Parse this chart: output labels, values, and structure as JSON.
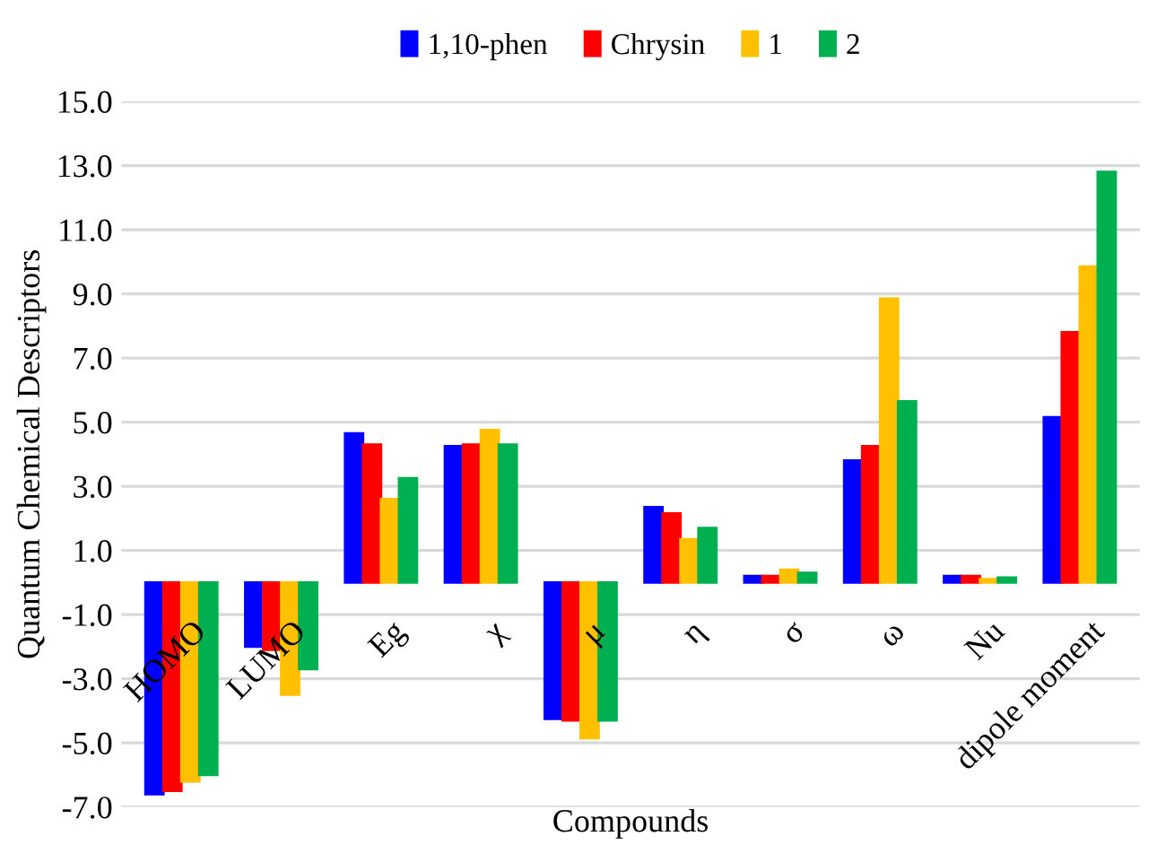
{
  "chart_data": {
    "type": "bar",
    "xlabel": "Compounds",
    "ylabel": "Quantum Chemical Descriptors",
    "categories": [
      "HOMO",
      "LUMO",
      "Eg",
      "χ",
      "μ",
      "η",
      "σ",
      "ω",
      "Nu",
      "dipole moment"
    ],
    "series": [
      {
        "name": "1,10-phen",
        "color": "#0000ff",
        "values": [
          -6.6,
          -2.0,
          4.65,
          4.25,
          -4.25,
          2.35,
          0.2,
          3.8,
          0.2,
          5.15
        ]
      },
      {
        "name": "Chrysin",
        "color": "#ff0000",
        "values": [
          -6.5,
          -2.1,
          4.3,
          4.3,
          -4.3,
          2.15,
          0.2,
          4.25,
          0.2,
          7.8
        ]
      },
      {
        "name": "1",
        "color": "#ffc000",
        "values": [
          -6.2,
          -3.5,
          2.6,
          4.75,
          -4.85,
          1.35,
          0.4,
          8.85,
          0.1,
          9.85
        ]
      },
      {
        "name": "2",
        "color": "#00b050",
        "values": [
          -6.0,
          -2.7,
          3.25,
          4.3,
          -4.3,
          1.7,
          0.3,
          5.65,
          0.15,
          12.8
        ]
      }
    ],
    "ylim": [
      -7,
      15
    ],
    "yticks": [
      {
        "value": -7,
        "label": "-7.0"
      },
      {
        "value": -5,
        "label": "-5.0"
      },
      {
        "value": -3,
        "label": "-3.0"
      },
      {
        "value": -1,
        "label": "-1.0"
      },
      {
        "value": 1,
        "label": "1.0"
      },
      {
        "value": 3,
        "label": "3.0"
      },
      {
        "value": 5,
        "label": "5.0"
      },
      {
        "value": 7,
        "label": "7.0"
      },
      {
        "value": 9,
        "label": "9.0"
      },
      {
        "value": 11,
        "label": "11.0"
      },
      {
        "value": 13,
        "label": "13.0"
      },
      {
        "value": 15,
        "label": "15.0"
      }
    ],
    "grid": "y",
    "legend": "top"
  }
}
